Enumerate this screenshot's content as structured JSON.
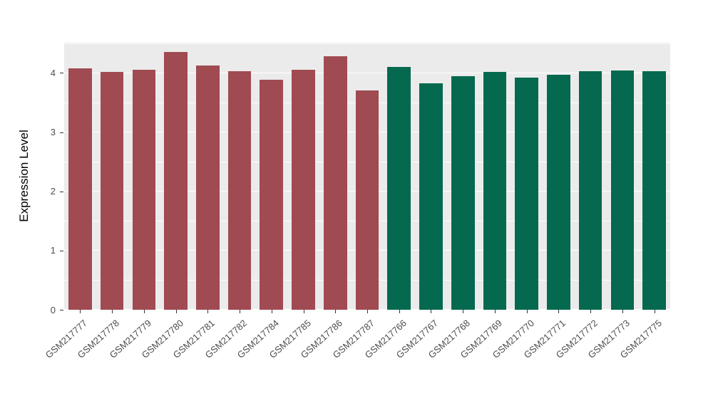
{
  "chart_data": {
    "type": "bar",
    "title": "",
    "xlabel": "",
    "ylabel": "Expression Level",
    "categories": [
      "GSM217777",
      "GSM217778",
      "GSM217779",
      "GSM217780",
      "GSM217781",
      "GSM217782",
      "GSM217784",
      "GSM217785",
      "GSM217786",
      "GSM217787",
      "GSM217766",
      "GSM217767",
      "GSM217768",
      "GSM217769",
      "GSM217770",
      "GSM217771",
      "GSM217772",
      "GSM217773",
      "GSM217775"
    ],
    "values": [
      4.08,
      4.02,
      4.05,
      4.35,
      4.13,
      4.03,
      3.89,
      4.05,
      4.28,
      3.7,
      4.1,
      3.82,
      3.94,
      4.02,
      3.92,
      3.97,
      4.03,
      4.04,
      4.03
    ],
    "colors": [
      "#9F4B51",
      "#9F4B51",
      "#9F4B51",
      "#9F4B51",
      "#9F4B51",
      "#9F4B51",
      "#9F4B51",
      "#9F4B51",
      "#9F4B51",
      "#9F4B51",
      "#04694E",
      "#04694E",
      "#04694E",
      "#04694E",
      "#04694E",
      "#04694E",
      "#04694E",
      "#04694E",
      "#04694E"
    ],
    "group_colors": {
      "left_group": "#9F4B51",
      "right_group": "#04694E"
    },
    "yticks": [
      0,
      1,
      2,
      3,
      4
    ],
    "ytick_labels": [
      "0",
      "1",
      "2",
      "3",
      "4"
    ],
    "ylim": [
      0,
      4.51
    ],
    "grid": true,
    "minor_grid_step": 0.5,
    "legend": "none",
    "panel_background": "#EBEBEB",
    "gridline_color": "#FFFFFF",
    "x_label_angle_deg": 42
  }
}
